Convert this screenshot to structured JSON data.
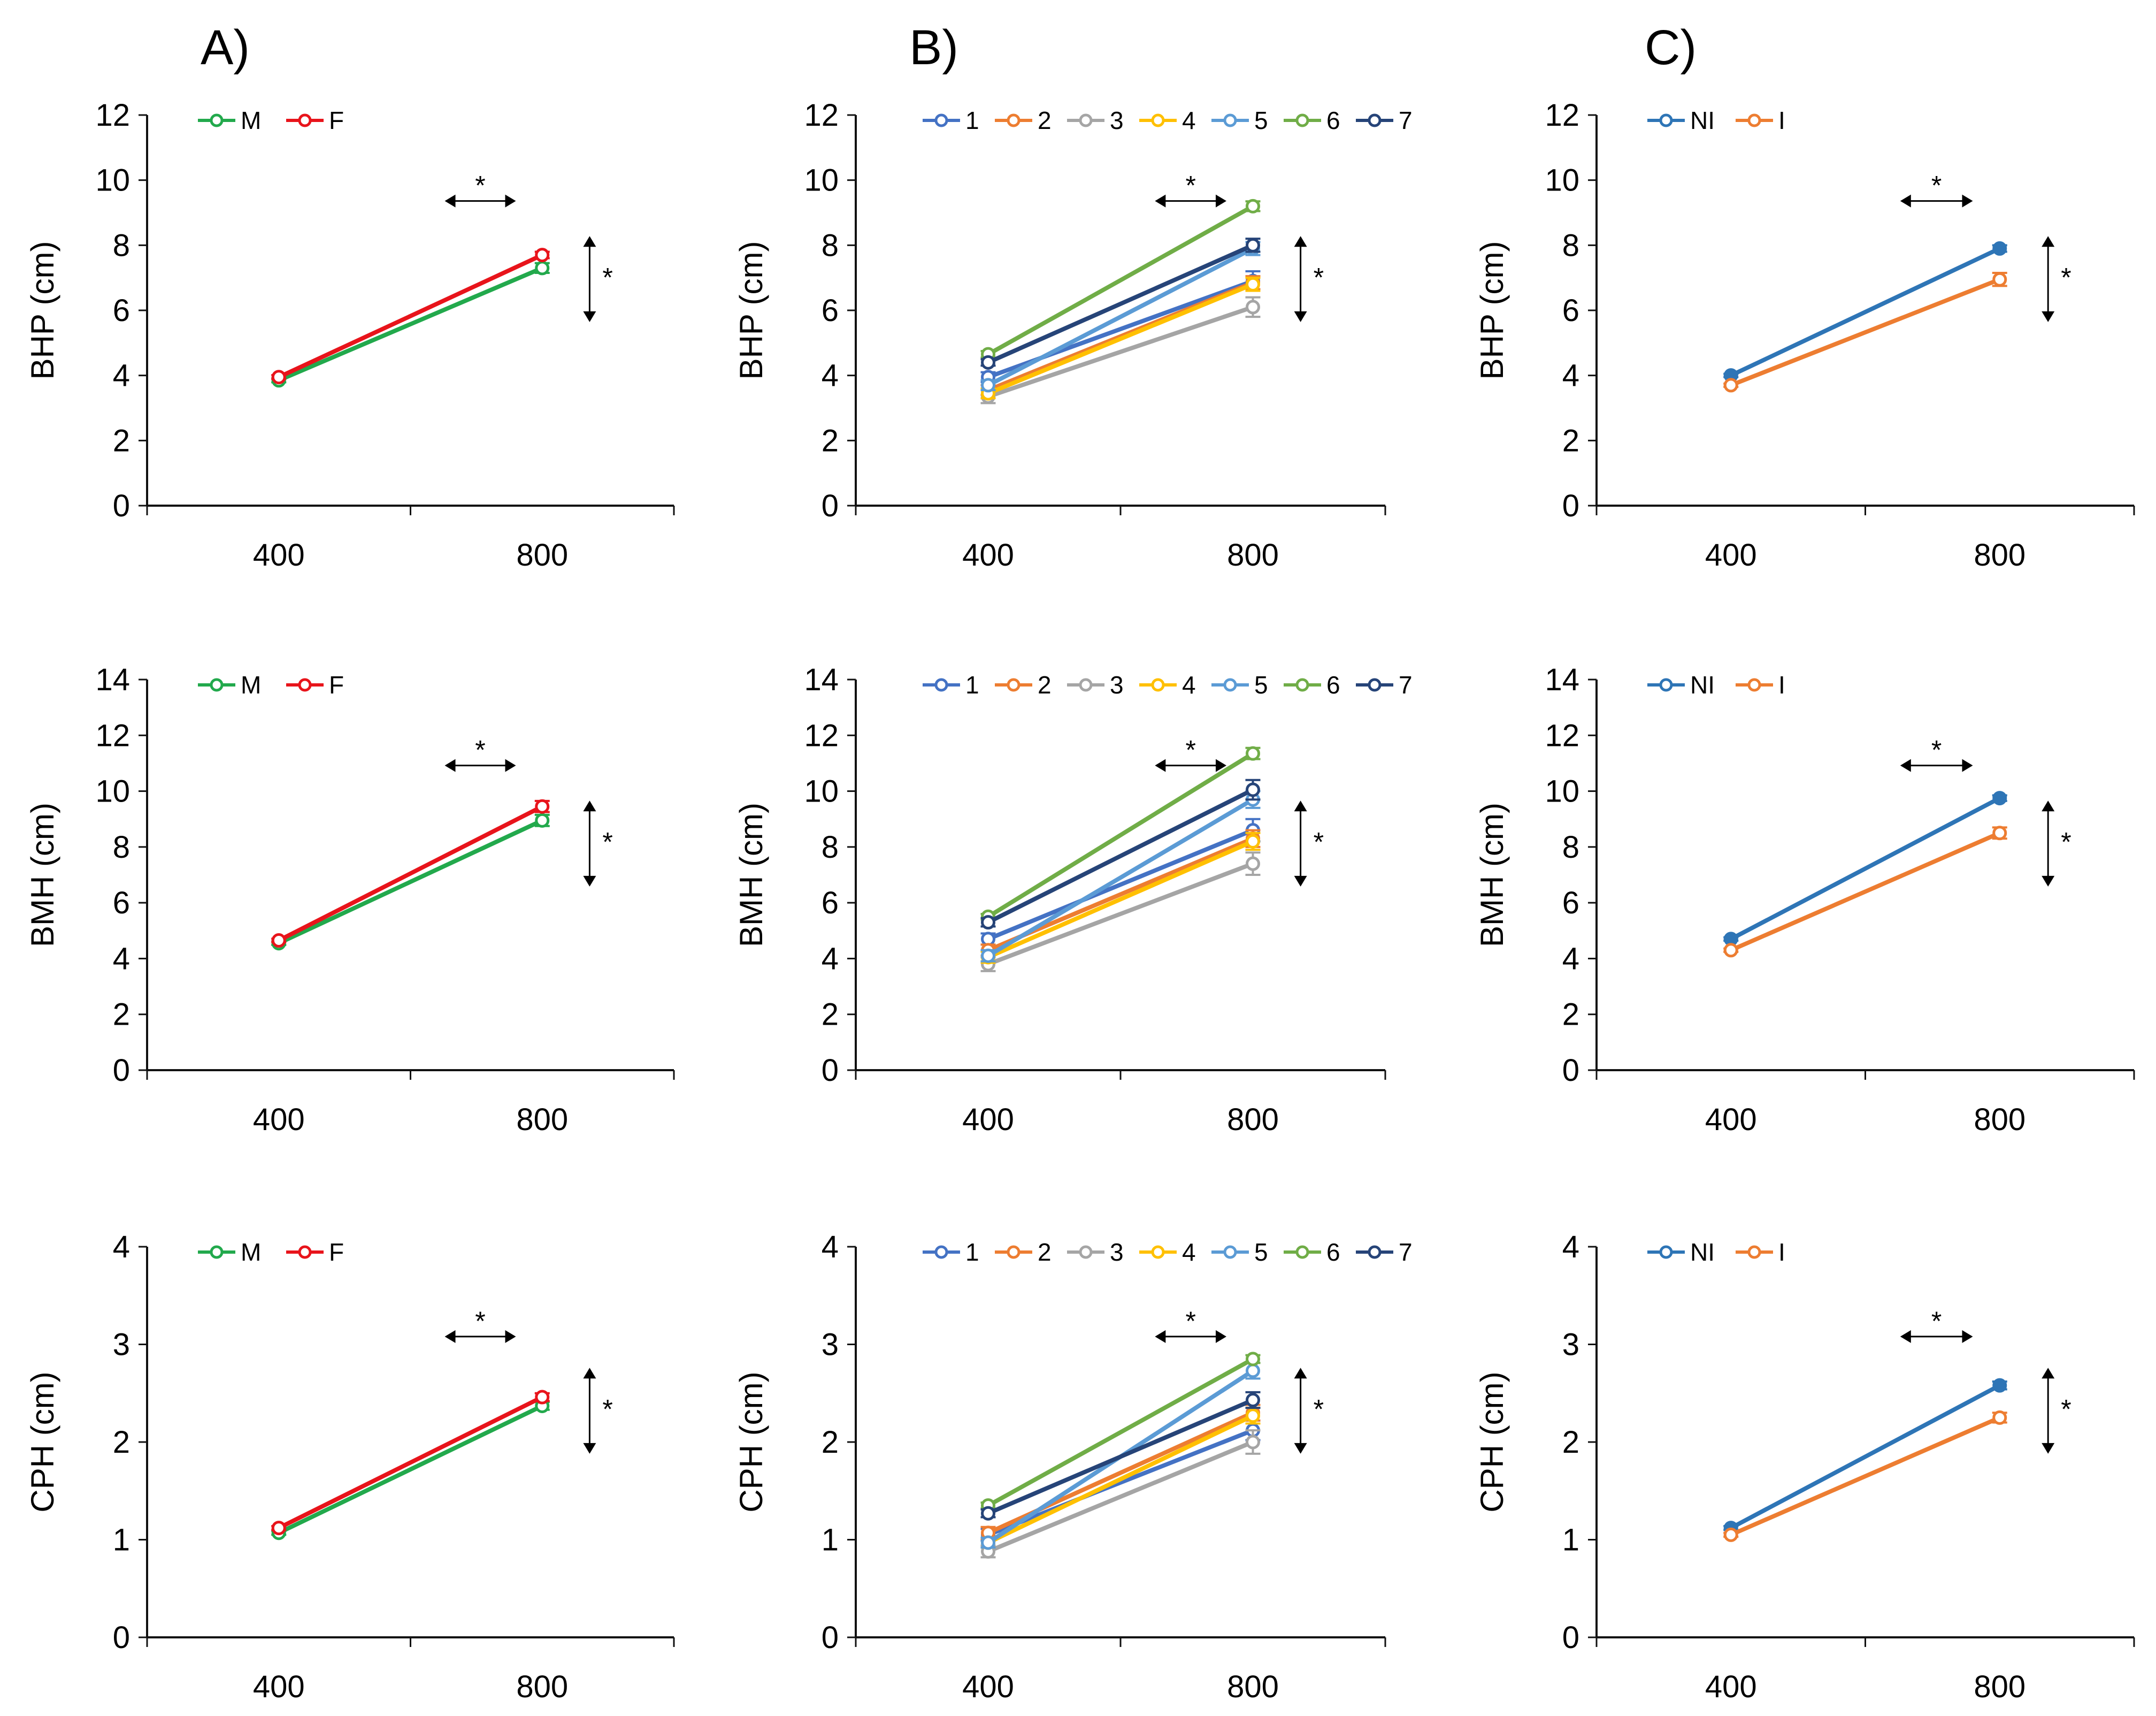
{
  "panel_letters": [
    "A)",
    "B)",
    "C)"
  ],
  "significance_marker": "*",
  "chart_data": [
    {
      "type": "line",
      "id": "A1",
      "column": 0,
      "row": 0,
      "ylabel": "BHP (cm)",
      "ylim": [
        0,
        12
      ],
      "yticks": [
        0,
        2,
        4,
        6,
        8,
        10,
        12
      ],
      "categories": [
        "400",
        "800"
      ],
      "series": [
        {
          "name": "M",
          "color": "#22A94C",
          "values": [
            3.85,
            7.3
          ],
          "err": [
            0.06,
            0.15
          ]
        },
        {
          "name": "F",
          "color": "#E8141B",
          "values": [
            3.95,
            7.7
          ],
          "err": [
            0.06,
            0.1
          ]
        }
      ]
    },
    {
      "type": "line",
      "id": "B1",
      "column": 1,
      "row": 0,
      "ylabel": "BHP (cm)",
      "ylim": [
        0,
        12
      ],
      "yticks": [
        0,
        2,
        4,
        6,
        8,
        10,
        12
      ],
      "categories": [
        "400",
        "800"
      ],
      "series": [
        {
          "name": "1",
          "color": "#4472C4",
          "values": [
            3.95,
            6.9
          ],
          "err": [
            0.15,
            0.3
          ]
        },
        {
          "name": "2",
          "color": "#ED7D31",
          "values": [
            3.55,
            6.85
          ],
          "err": [
            0.15,
            0.2
          ]
        },
        {
          "name": "3",
          "color": "#A5A5A5",
          "values": [
            3.35,
            6.1
          ],
          "err": [
            0.2,
            0.3
          ]
        },
        {
          "name": "4",
          "color": "#FFC000",
          "values": [
            3.45,
            6.8
          ],
          "err": [
            0.15,
            0.2
          ]
        },
        {
          "name": "5",
          "color": "#5B9BD5",
          "values": [
            3.7,
            7.9
          ],
          "err": [
            0.15,
            0.2
          ]
        },
        {
          "name": "6",
          "color": "#70AD47",
          "values": [
            4.65,
            9.2
          ],
          "err": [
            0.1,
            0.15
          ]
        },
        {
          "name": "7",
          "color": "#264478",
          "values": [
            4.4,
            8.0
          ],
          "err": [
            0.1,
            0.2
          ]
        }
      ]
    },
    {
      "type": "line",
      "id": "C1",
      "column": 2,
      "row": 0,
      "ylabel": "BHP (cm)",
      "ylim": [
        0,
        12
      ],
      "yticks": [
        0,
        2,
        4,
        6,
        8,
        10,
        12
      ],
      "categories": [
        "400",
        "800"
      ],
      "series": [
        {
          "name": "NI",
          "color": "#2E75B6",
          "values": [
            4.0,
            7.9
          ],
          "err": [
            0.05,
            0.1
          ]
        },
        {
          "name": "I",
          "color": "#ED7D31",
          "values": [
            3.7,
            6.95
          ],
          "err": [
            0.05,
            0.2
          ]
        }
      ]
    },
    {
      "type": "line",
      "id": "A2",
      "column": 0,
      "row": 1,
      "ylabel": "BMH (cm)",
      "ylim": [
        0,
        14
      ],
      "yticks": [
        0,
        2,
        4,
        6,
        8,
        10,
        12,
        14
      ],
      "categories": [
        "400",
        "800"
      ],
      "series": [
        {
          "name": "M",
          "color": "#22A94C",
          "values": [
            4.55,
            8.95
          ],
          "err": [
            0.06,
            0.2
          ]
        },
        {
          "name": "F",
          "color": "#E8141B",
          "values": [
            4.65,
            9.45
          ],
          "err": [
            0.06,
            0.2
          ]
        }
      ]
    },
    {
      "type": "line",
      "id": "B2",
      "column": 1,
      "row": 1,
      "ylabel": "BMH (cm)",
      "ylim": [
        0,
        14
      ],
      "yticks": [
        0,
        2,
        4,
        6,
        8,
        10,
        12,
        14
      ],
      "categories": [
        "400",
        "800"
      ],
      "series": [
        {
          "name": "1",
          "color": "#4472C4",
          "values": [
            4.7,
            8.6
          ],
          "err": [
            0.2,
            0.4
          ]
        },
        {
          "name": "2",
          "color": "#ED7D31",
          "values": [
            4.3,
            8.3
          ],
          "err": [
            0.2,
            0.3
          ]
        },
        {
          "name": "3",
          "color": "#A5A5A5",
          "values": [
            3.8,
            7.4
          ],
          "err": [
            0.25,
            0.4
          ]
        },
        {
          "name": "4",
          "color": "#FFC000",
          "values": [
            4.05,
            8.2
          ],
          "err": [
            0.2,
            0.3
          ]
        },
        {
          "name": "5",
          "color": "#5B9BD5",
          "values": [
            4.1,
            9.7
          ],
          "err": [
            0.2,
            0.3
          ]
        },
        {
          "name": "6",
          "color": "#70AD47",
          "values": [
            5.5,
            11.35
          ],
          "err": [
            0.1,
            0.2
          ]
        },
        {
          "name": "7",
          "color": "#264478",
          "values": [
            5.3,
            10.05
          ],
          "err": [
            0.15,
            0.35
          ]
        }
      ]
    },
    {
      "type": "line",
      "id": "C2",
      "column": 2,
      "row": 1,
      "ylabel": "BMH (cm)",
      "ylim": [
        0,
        14
      ],
      "yticks": [
        0,
        2,
        4,
        6,
        8,
        10,
        12,
        14
      ],
      "categories": [
        "400",
        "800"
      ],
      "series": [
        {
          "name": "NI",
          "color": "#2E75B6",
          "values": [
            4.7,
            9.75
          ],
          "err": [
            0.06,
            0.1
          ]
        },
        {
          "name": "I",
          "color": "#ED7D31",
          "values": [
            4.3,
            8.5
          ],
          "err": [
            0.06,
            0.2
          ]
        }
      ]
    },
    {
      "type": "line",
      "id": "A3",
      "column": 0,
      "row": 2,
      "ylabel": "CPH (cm)",
      "ylim": [
        0,
        4
      ],
      "yticks": [
        0,
        1,
        2,
        3,
        4
      ],
      "categories": [
        "400",
        "800"
      ],
      "series": [
        {
          "name": "M",
          "color": "#22A94C",
          "values": [
            1.07,
            2.37
          ],
          "err": [
            0.02,
            0.04
          ]
        },
        {
          "name": "F",
          "color": "#E8141B",
          "values": [
            1.12,
            2.46
          ],
          "err": [
            0.02,
            0.04
          ]
        }
      ]
    },
    {
      "type": "line",
      "id": "B3",
      "column": 1,
      "row": 2,
      "ylabel": "CPH (cm)",
      "ylim": [
        0,
        4
      ],
      "yticks": [
        0,
        1,
        2,
        3,
        4
      ],
      "categories": [
        "400",
        "800"
      ],
      "series": [
        {
          "name": "1",
          "color": "#4472C4",
          "values": [
            1.05,
            2.12
          ],
          "err": [
            0.06,
            0.1
          ]
        },
        {
          "name": "2",
          "color": "#ED7D31",
          "values": [
            1.07,
            2.3
          ],
          "err": [
            0.06,
            0.08
          ]
        },
        {
          "name": "3",
          "color": "#A5A5A5",
          "values": [
            0.88,
            2.0
          ],
          "err": [
            0.06,
            0.12
          ]
        },
        {
          "name": "4",
          "color": "#FFC000",
          "values": [
            0.97,
            2.27
          ],
          "err": [
            0.05,
            0.08
          ]
        },
        {
          "name": "5",
          "color": "#5B9BD5",
          "values": [
            0.97,
            2.73
          ],
          "err": [
            0.05,
            0.08
          ]
        },
        {
          "name": "6",
          "color": "#70AD47",
          "values": [
            1.35,
            2.85
          ],
          "err": [
            0.03,
            0.04
          ]
        },
        {
          "name": "7",
          "color": "#264478",
          "values": [
            1.27,
            2.43
          ],
          "err": [
            0.04,
            0.08
          ]
        }
      ]
    },
    {
      "type": "line",
      "id": "C3",
      "column": 2,
      "row": 2,
      "ylabel": "CPH (cm)",
      "ylim": [
        0,
        4
      ],
      "yticks": [
        0,
        1,
        2,
        3,
        4
      ],
      "categories": [
        "400",
        "800"
      ],
      "series": [
        {
          "name": "NI",
          "color": "#2E75B6",
          "values": [
            1.12,
            2.58
          ],
          "err": [
            0.02,
            0.04
          ]
        },
        {
          "name": "I",
          "color": "#ED7D31",
          "values": [
            1.05,
            2.25
          ],
          "err": [
            0.02,
            0.05
          ]
        }
      ]
    }
  ]
}
